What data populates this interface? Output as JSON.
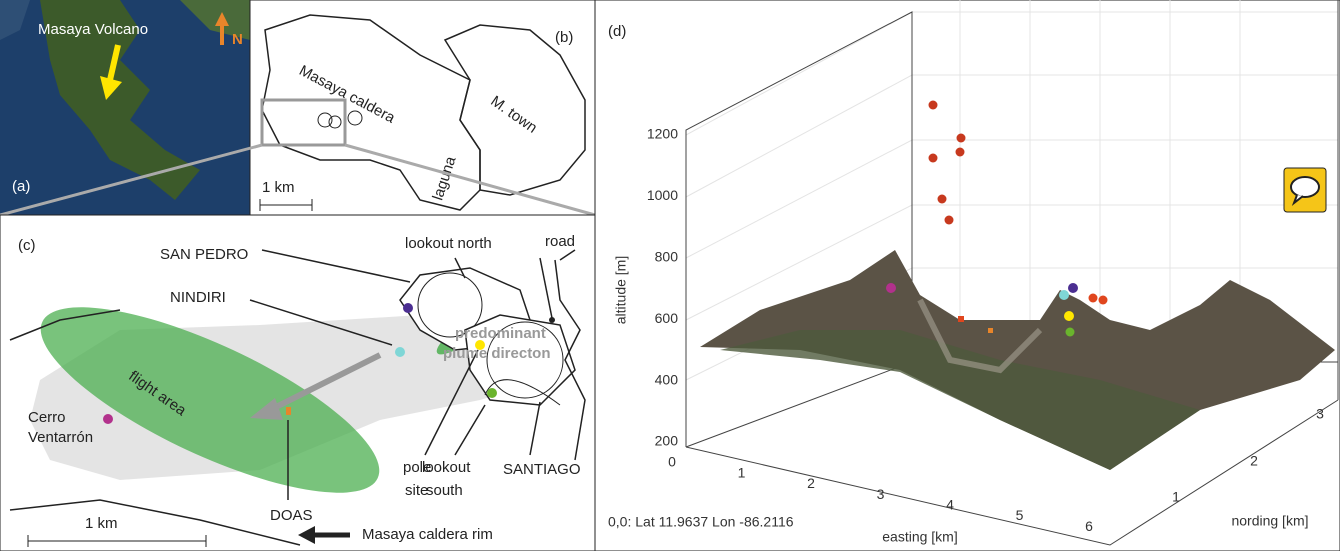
{
  "panel_a": {
    "label": "(a)",
    "volcano": "Masaya Volcano",
    "north": "N"
  },
  "panel_b": {
    "label": "(b)",
    "caldera": "Masaya caldera",
    "town": "M. town",
    "laguna": "laguna",
    "scale": "1 km"
  },
  "panel_c": {
    "label": "(c)",
    "san_pedro": "SAN PEDRO",
    "nindiri": "NINDIRI",
    "lookout_north": "lookout north",
    "road": "road",
    "plume": [
      "predominant",
      "plume directon"
    ],
    "flight_area": "flight area",
    "cerro": [
      "Cerro",
      "Ventarrón"
    ],
    "pole_site": [
      "pole",
      "site"
    ],
    "lookout_south": [
      "lookout",
      "south"
    ],
    "santiago": "SANTIAGO",
    "doas": "DOAS",
    "scale": "1 km",
    "rim": "Masaya caldera rim"
  },
  "panel_d": {
    "label": "(d)",
    "z_label": "altitude [m]",
    "z_ticks": [
      1200,
      1000,
      800,
      600,
      400,
      200
    ],
    "x_label": "easting [km]",
    "x_ticks": [
      0,
      1,
      2,
      3,
      4,
      5,
      6
    ],
    "y_label": "nording [km]",
    "y_ticks": [
      1,
      2,
      3
    ],
    "origin": "0,0: Lat 11.9637 Lon -86.2116"
  }
}
